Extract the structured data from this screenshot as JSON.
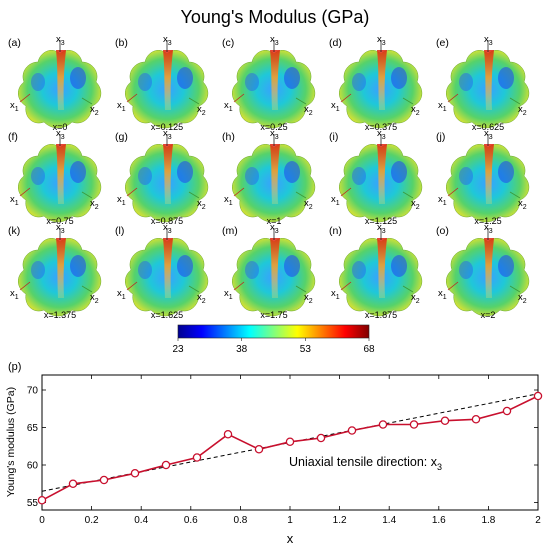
{
  "title": "Young's Modulus (GPa)",
  "panels": [
    {
      "letter": "(a)",
      "caption": "x=0"
    },
    {
      "letter": "(b)",
      "caption": "x=0.125"
    },
    {
      "letter": "(c)",
      "caption": "x=0.25"
    },
    {
      "letter": "(d)",
      "caption": "x=0.375"
    },
    {
      "letter": "(e)",
      "caption": "x=0.625"
    },
    {
      "letter": "(f)",
      "caption": "x=0.75"
    },
    {
      "letter": "(g)",
      "caption": "x=0.875"
    },
    {
      "letter": "(h)",
      "caption": "x=1"
    },
    {
      "letter": "(i)",
      "caption": "x=1.125"
    },
    {
      "letter": "(j)",
      "caption": "x=1.25"
    },
    {
      "letter": "(k)",
      "caption": "x=1.375"
    },
    {
      "letter": "(l)",
      "caption": "x=1.625"
    },
    {
      "letter": "(m)",
      "caption": "x=1.75"
    },
    {
      "letter": "(n)",
      "caption": "x=1.875"
    },
    {
      "letter": "(o)",
      "caption": "x=2"
    }
  ],
  "axis_labels": {
    "x1": "x",
    "x1_sub": "1",
    "x2": "x",
    "x2_sub": "2",
    "x3": "x",
    "x3_sub": "3"
  },
  "colorbar": {
    "ticks": [
      "23",
      "38",
      "53",
      "68"
    ],
    "tick_values": [
      23,
      38,
      53,
      68
    ],
    "colormap": "jet"
  },
  "chart_data": {
    "type": "line",
    "panel_label": "(p)",
    "xlabel": "x",
    "ylabel": "Young's modulus (GPa)",
    "xlim": [
      0,
      2
    ],
    "ylim": [
      54,
      72
    ],
    "xticks": [
      "0",
      "0.2",
      "0.4",
      "0.6",
      "0.8",
      "1",
      "1.2",
      "1.4",
      "1.6",
      "1.8",
      "2"
    ],
    "yticks": [
      "55",
      "60",
      "65",
      "70"
    ],
    "annotation": "Uniaxial tensile direction: x",
    "annotation_sub": "3",
    "series": [
      {
        "color": "#c8102e",
        "marker": "open-circle",
        "x": [
          0,
          0.125,
          0.25,
          0.375,
          0.5,
          0.625,
          0.75,
          0.875,
          1,
          1.125,
          1.25,
          1.375,
          1.5,
          1.625,
          1.75,
          1.875,
          2
        ],
        "y": [
          55.3,
          57.5,
          58.0,
          58.9,
          60.0,
          61.0,
          64.1,
          62.1,
          63.1,
          63.6,
          64.6,
          65.4,
          65.4,
          65.9,
          66.1,
          67.2,
          69.2
        ]
      },
      {
        "color": "#000000",
        "style": "dashed",
        "x": [
          0,
          2
        ],
        "y": [
          56.5,
          69.5
        ]
      }
    ]
  }
}
